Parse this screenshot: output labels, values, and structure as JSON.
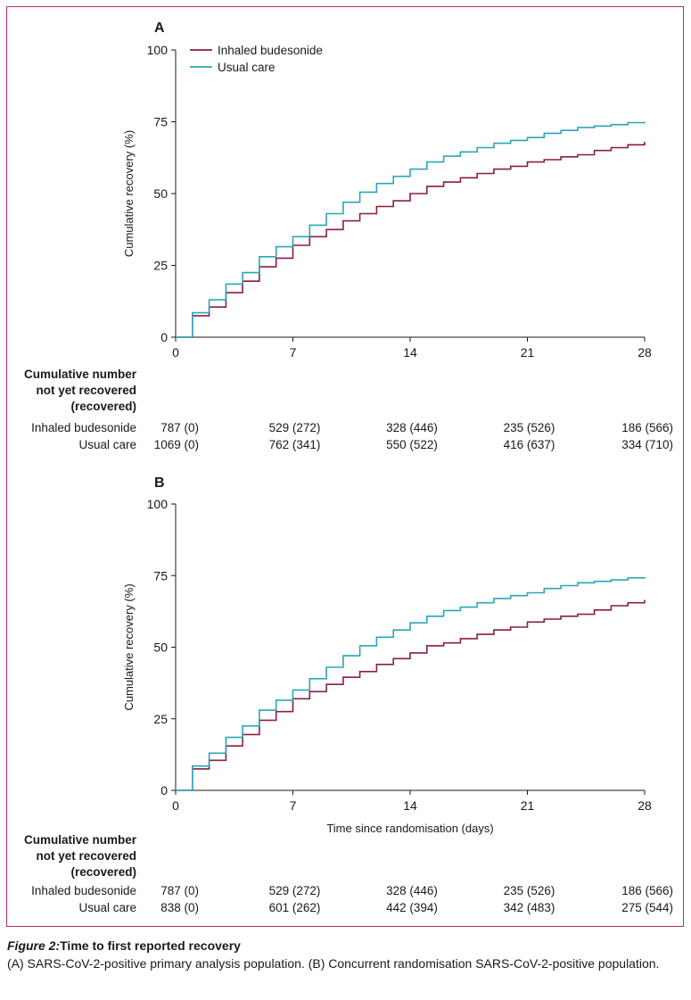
{
  "colors": {
    "frame": "#b0306a",
    "inhaled_budesonide": "#8a1c4a",
    "usual_care": "#2aa6bb",
    "axis": "#1a1a1a"
  },
  "risk_table_header": [
    "Cumulative number",
    "not yet recovered",
    "(recovered)"
  ],
  "chart_data": [
    {
      "type": "line",
      "panel": "A",
      "ylabel": "Cumulative recovery (%)",
      "xlabel": "",
      "xlim": [
        0,
        28
      ],
      "ylim": [
        0,
        100
      ],
      "xticks": [
        0,
        7,
        14,
        21,
        28
      ],
      "yticks": [
        0,
        25,
        50,
        75,
        100
      ],
      "legend": "top-left",
      "step": true,
      "series": [
        {
          "name": "Inhaled budesonide",
          "color": "#8a1c4a",
          "x": [
            0,
            1,
            2,
            3,
            4,
            5,
            6,
            7,
            8,
            9,
            10,
            11,
            12,
            13,
            14,
            15,
            16,
            17,
            18,
            19,
            20,
            21,
            22,
            23,
            24,
            25,
            26,
            27,
            28
          ],
          "y": [
            0,
            7.5,
            10.5,
            15.5,
            19.5,
            24.5,
            27.5,
            32,
            35,
            37.5,
            40.5,
            43,
            45.5,
            47.5,
            50,
            52.5,
            54,
            55.5,
            57,
            58.5,
            59.5,
            61,
            61.8,
            62.8,
            63.5,
            65,
            66,
            67,
            68
          ]
        },
        {
          "name": "Usual care",
          "color": "#2aa6bb",
          "x": [
            0,
            1,
            2,
            3,
            4,
            5,
            6,
            7,
            8,
            9,
            10,
            11,
            12,
            13,
            14,
            15,
            16,
            17,
            18,
            19,
            20,
            21,
            22,
            23,
            24,
            25,
            26,
            27,
            28
          ],
          "y": [
            0,
            8.5,
            13,
            18.5,
            22.5,
            28,
            31.5,
            35,
            39,
            43,
            47,
            50.5,
            53.5,
            56,
            58.5,
            61,
            63,
            64.5,
            66,
            67.5,
            68.5,
            69.5,
            71,
            72,
            73,
            73.5,
            74,
            74.7,
            75
          ]
        }
      ],
      "risk_table": {
        "x": [
          0,
          7,
          14,
          21,
          28
        ],
        "rows": [
          {
            "label": "Inhaled budesonide",
            "values": [
              "787 (0)",
              "529 (272)",
              "328 (446)",
              "235 (526)",
              "186 (566)"
            ]
          },
          {
            "label": "Usual care",
            "values": [
              "1069 (0)",
              "762 (341)",
              "550 (522)",
              "416 (637)",
              "334 (710)"
            ]
          }
        ]
      }
    },
    {
      "type": "line",
      "panel": "B",
      "ylabel": "Cumulative recovery (%)",
      "xlabel": "Time since randomisation (days)",
      "xlim": [
        0,
        28
      ],
      "ylim": [
        0,
        100
      ],
      "xticks": [
        0,
        7,
        14,
        21,
        28
      ],
      "yticks": [
        0,
        25,
        50,
        75,
        100
      ],
      "step": true,
      "series": [
        {
          "name": "Inhaled budesonide",
          "color": "#8a1c4a",
          "x": [
            0,
            1,
            2,
            3,
            4,
            5,
            6,
            7,
            8,
            9,
            10,
            11,
            12,
            13,
            14,
            15,
            16,
            17,
            18,
            19,
            20,
            21,
            22,
            23,
            24,
            25,
            26,
            27,
            28
          ],
          "y": [
            0,
            7.5,
            10.5,
            15.5,
            19.5,
            24.5,
            27.5,
            32,
            34.5,
            37,
            39.5,
            41.5,
            44,
            46,
            48,
            50.5,
            51.5,
            53,
            54.5,
            56,
            57,
            58.8,
            59.8,
            60.8,
            61.5,
            63,
            64.5,
            65.5,
            66.5
          ]
        },
        {
          "name": "Usual care",
          "color": "#2aa6bb",
          "x": [
            0,
            1,
            2,
            3,
            4,
            5,
            6,
            7,
            8,
            9,
            10,
            11,
            12,
            13,
            14,
            15,
            16,
            17,
            18,
            19,
            20,
            21,
            22,
            23,
            24,
            25,
            26,
            27,
            28
          ],
          "y": [
            0,
            8.5,
            13,
            18.5,
            22.5,
            28,
            31.5,
            35,
            39,
            43,
            47,
            50.5,
            53.5,
            56,
            58.5,
            60.8,
            62.8,
            64,
            65.5,
            67,
            68,
            69,
            70.5,
            71.5,
            72.5,
            73,
            73.5,
            74.2,
            74.5
          ]
        }
      ],
      "risk_table": {
        "x": [
          0,
          7,
          14,
          21,
          28
        ],
        "rows": [
          {
            "label": "Inhaled budesonide",
            "values": [
              "787 (0)",
              "529 (272)",
              "328 (446)",
              "235 (526)",
              "186 (566)"
            ]
          },
          {
            "label": "Usual care",
            "values": [
              "838 (0)",
              "601 (262)",
              "442 (394)",
              "342 (483)",
              "275 (544)"
            ]
          }
        ]
      }
    }
  ],
  "caption": {
    "figure_label": "Figure 2:",
    "title": "Time to first reported recovery",
    "text": "(A) SARS-CoV-2-positive primary analysis population. (B) Concurrent randomisation SARS-CoV-2-positive population."
  }
}
